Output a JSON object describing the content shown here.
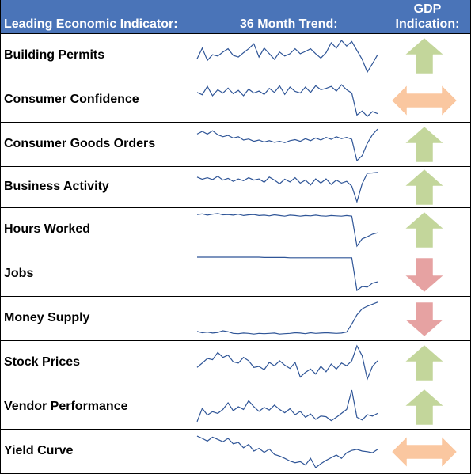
{
  "header": {
    "indicator": "Leading Economic Indicator:",
    "trend": "36 Month Trend:",
    "gdp_line1": "GDP",
    "gdp_line2": "Indication:"
  },
  "colors": {
    "header_bg": "#4a74b8",
    "sparkline": "#2f5597",
    "arrow_up": "#c3d69b",
    "arrow_down": "#e6a2a2",
    "arrow_both": "#fac7a0"
  },
  "chart_data": {
    "type": "table",
    "columns": [
      "Leading Economic Indicator:",
      "36 Month Trend:",
      "GDP Indication:"
    ],
    "rows": [
      {
        "label": "Building Permits",
        "indication": "up",
        "trend": [
          0.4,
          0.72,
          0.35,
          0.52,
          0.48,
          0.6,
          0.7,
          0.5,
          0.45,
          0.58,
          0.7,
          0.85,
          0.45,
          0.72,
          0.55,
          0.38,
          0.6,
          0.48,
          0.55,
          0.7,
          0.55,
          0.62,
          0.7,
          0.55,
          0.42,
          0.58,
          0.88,
          0.72,
          0.95,
          0.78,
          0.92,
          0.65,
          0.38,
          0.0,
          0.25,
          0.52
        ]
      },
      {
        "label": "Consumer Confidence",
        "indication": "both",
        "trend": [
          0.72,
          0.65,
          0.9,
          0.62,
          0.8,
          0.7,
          0.85,
          0.68,
          0.78,
          0.62,
          0.82,
          0.7,
          0.76,
          0.66,
          0.84,
          0.72,
          0.92,
          0.66,
          0.88,
          0.75,
          0.7,
          0.88,
          0.72,
          0.92,
          0.8,
          0.84,
          0.9,
          0.76,
          0.95,
          0.8,
          0.7,
          0.04,
          0.16,
          0.0,
          0.14,
          0.08
        ]
      },
      {
        "label": "Consumer Goods Orders",
        "indication": "up",
        "trend": [
          0.8,
          0.88,
          0.8,
          0.9,
          0.78,
          0.72,
          0.76,
          0.68,
          0.72,
          0.62,
          0.65,
          0.58,
          0.62,
          0.56,
          0.6,
          0.55,
          0.58,
          0.54,
          0.6,
          0.63,
          0.58,
          0.66,
          0.6,
          0.68,
          0.62,
          0.7,
          0.64,
          0.72,
          0.66,
          0.7,
          0.64,
          0.0,
          0.15,
          0.52,
          0.78,
          0.95
        ]
      },
      {
        "label": "Business Activity",
        "indication": "up",
        "trend": [
          0.82,
          0.75,
          0.8,
          0.74,
          0.85,
          0.72,
          0.78,
          0.68,
          0.76,
          0.7,
          0.8,
          0.72,
          0.76,
          0.65,
          0.82,
          0.72,
          0.6,
          0.75,
          0.66,
          0.8,
          0.62,
          0.72,
          0.56,
          0.76,
          0.62,
          0.76,
          0.58,
          0.72,
          0.62,
          0.68,
          0.52,
          0.0,
          0.6,
          0.95,
          0.96,
          0.98
        ]
      },
      {
        "label": "Hours Worked",
        "indication": "up",
        "trend": [
          0.95,
          0.97,
          0.93,
          0.96,
          0.98,
          0.94,
          0.95,
          0.93,
          0.96,
          0.92,
          0.94,
          0.95,
          0.92,
          0.93,
          0.91,
          0.94,
          0.92,
          0.9,
          0.93,
          0.92,
          0.9,
          0.92,
          0.91,
          0.93,
          0.91,
          0.9,
          0.92,
          0.91,
          0.9,
          0.92,
          0.9,
          0.0,
          0.22,
          0.28,
          0.36,
          0.4
        ]
      },
      {
        "label": "Jobs",
        "indication": "down",
        "trend": [
          1.0,
          1.0,
          1.0,
          1.0,
          1.0,
          1.0,
          1.0,
          1.0,
          1.0,
          1.0,
          1.0,
          1.0,
          1.0,
          0.99,
          0.99,
          0.99,
          0.99,
          0.99,
          0.98,
          0.98,
          0.98,
          0.98,
          0.98,
          0.98,
          0.98,
          0.98,
          0.98,
          0.98,
          0.98,
          0.98,
          0.98,
          0.0,
          0.12,
          0.1,
          0.22,
          0.26
        ]
      },
      {
        "label": "Money Supply",
        "indication": "down",
        "trend": [
          0.1,
          0.06,
          0.08,
          0.05,
          0.07,
          0.12,
          0.09,
          0.04,
          0.03,
          0.05,
          0.04,
          0.02,
          0.04,
          0.03,
          0.04,
          0.05,
          0.02,
          0.03,
          0.04,
          0.06,
          0.05,
          0.03,
          0.06,
          0.04,
          0.05,
          0.06,
          0.05,
          0.04,
          0.05,
          0.08,
          0.32,
          0.6,
          0.78,
          0.86,
          0.92,
          0.98
        ]
      },
      {
        "label": "Stock Prices",
        "indication": "up",
        "trend": [
          0.35,
          0.48,
          0.62,
          0.58,
          0.8,
          0.65,
          0.72,
          0.52,
          0.48,
          0.65,
          0.55,
          0.35,
          0.38,
          0.28,
          0.5,
          0.4,
          0.55,
          0.42,
          0.32,
          0.5,
          0.06,
          0.2,
          0.3,
          0.15,
          0.38,
          0.22,
          0.45,
          0.3,
          0.48,
          0.4,
          0.55,
          1.0,
          0.7,
          0.0,
          0.38,
          0.55
        ]
      },
      {
        "label": "Vendor Performance",
        "indication": "up",
        "trend": [
          0.05,
          0.45,
          0.25,
          0.35,
          0.3,
          0.42,
          0.62,
          0.38,
          0.5,
          0.42,
          0.68,
          0.5,
          0.36,
          0.48,
          0.4,
          0.55,
          0.42,
          0.32,
          0.44,
          0.26,
          0.36,
          0.18,
          0.28,
          0.12,
          0.22,
          0.2,
          0.08,
          0.18,
          0.3,
          0.42,
          1.0,
          0.18,
          0.1,
          0.26,
          0.22,
          0.3
        ]
      },
      {
        "label": "Yield Curve",
        "indication": "both",
        "trend": [
          0.95,
          0.88,
          0.8,
          0.92,
          0.85,
          0.78,
          0.88,
          0.72,
          0.76,
          0.6,
          0.7,
          0.5,
          0.58,
          0.46,
          0.56,
          0.4,
          0.35,
          0.28,
          0.2,
          0.15,
          0.18,
          0.08,
          0.28,
          0.0,
          0.12,
          0.22,
          0.3,
          0.38,
          0.28,
          0.45,
          0.52,
          0.55,
          0.5,
          0.48,
          0.45,
          0.55
        ]
      }
    ]
  }
}
